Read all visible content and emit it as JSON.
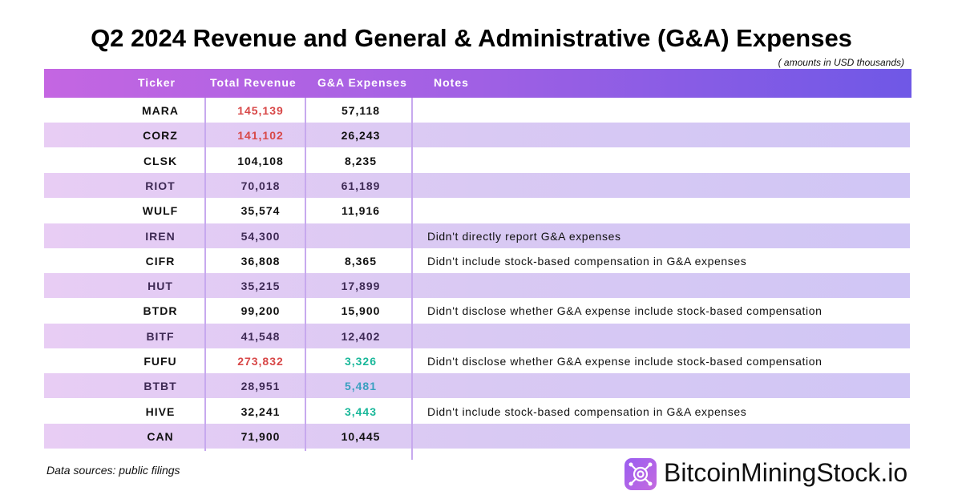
{
  "title": "Q2 2024 Revenue and General & Administrative (G&A) Expenses",
  "unit_note": "( amounts in USD thousands)",
  "source": "Data sources: public filings",
  "brand": "BitcoinMiningStock.io",
  "colors": {
    "header_start": "#c466e2",
    "header_end": "#6f58e6",
    "highlight_red": "#d84848",
    "highlight_green": "#1ab89a",
    "highlight_blue": "#3aa0c0",
    "muted_purple": "#3e2a55"
  },
  "chart_data": {
    "type": "table",
    "columns": [
      "Ticker",
      "Total Revenue",
      "G&A Expenses",
      "Notes"
    ],
    "rows": [
      {
        "ticker": "MARA",
        "revenue": "145,139",
        "ga": "57,118",
        "notes": "",
        "rev_color": "#d84848",
        "ga_color": "#111",
        "tk_color": "#111"
      },
      {
        "ticker": "CORZ",
        "revenue": "141,102",
        "ga": "26,243",
        "notes": "",
        "rev_color": "#d84848",
        "ga_color": "#111",
        "tk_color": "#111"
      },
      {
        "ticker": "CLSK",
        "revenue": "104,108",
        "ga": "8,235",
        "notes": "",
        "rev_color": "#111",
        "ga_color": "#111",
        "tk_color": "#111"
      },
      {
        "ticker": "RIOT",
        "revenue": "70,018",
        "ga": "61,189",
        "notes": "",
        "rev_color": "#3e2a55",
        "ga_color": "#3e2a55",
        "tk_color": "#3e2a55"
      },
      {
        "ticker": "WULF",
        "revenue": "35,574",
        "ga": "11,916",
        "notes": "",
        "rev_color": "#111",
        "ga_color": "#111",
        "tk_color": "#111"
      },
      {
        "ticker": "IREN",
        "revenue": "54,300",
        "ga": "",
        "notes": "Didn't directly report G&A expenses",
        "rev_color": "#3e2a55",
        "ga_color": "#3e2a55",
        "tk_color": "#3e2a55"
      },
      {
        "ticker": "CIFR",
        "revenue": "36,808",
        "ga": "8,365",
        "notes": "Didn't include stock-based compensation in G&A expenses",
        "rev_color": "#111",
        "ga_color": "#111",
        "tk_color": "#111"
      },
      {
        "ticker": "HUT",
        "revenue": "35,215",
        "ga": "17,899",
        "notes": "",
        "rev_color": "#3e2a55",
        "ga_color": "#3e2a55",
        "tk_color": "#3e2a55"
      },
      {
        "ticker": "BTDR",
        "revenue": "99,200",
        "ga": "15,900",
        "notes": "Didn't disclose whether G&A expense include stock-based compensation",
        "rev_color": "#111",
        "ga_color": "#111",
        "tk_color": "#111"
      },
      {
        "ticker": "BITF",
        "revenue": "41,548",
        "ga": "12,402",
        "notes": "",
        "rev_color": "#3e2a55",
        "ga_color": "#3e2a55",
        "tk_color": "#3e2a55"
      },
      {
        "ticker": "FUFU",
        "revenue": "273,832",
        "ga": "3,326",
        "notes": "Didn't disclose whether G&A expense include stock-based compensation",
        "rev_color": "#d84848",
        "ga_color": "#1ab89a",
        "tk_color": "#111"
      },
      {
        "ticker": "BTBT",
        "revenue": "28,951",
        "ga": "5,481",
        "notes": "",
        "rev_color": "#3e2a55",
        "ga_color": "#3aa0c0",
        "tk_color": "#3e2a55"
      },
      {
        "ticker": "HIVE",
        "revenue": "32,241",
        "ga": "3,443",
        "notes": "Didn't include stock-based compensation in G&A expenses",
        "rev_color": "#111",
        "ga_color": "#1ab89a",
        "tk_color": "#111"
      },
      {
        "ticker": "CAN",
        "revenue": "71,900",
        "ga": "10,445",
        "notes": "",
        "rev_color": "#111",
        "ga_color": "#111",
        "tk_color": "#111"
      }
    ]
  }
}
